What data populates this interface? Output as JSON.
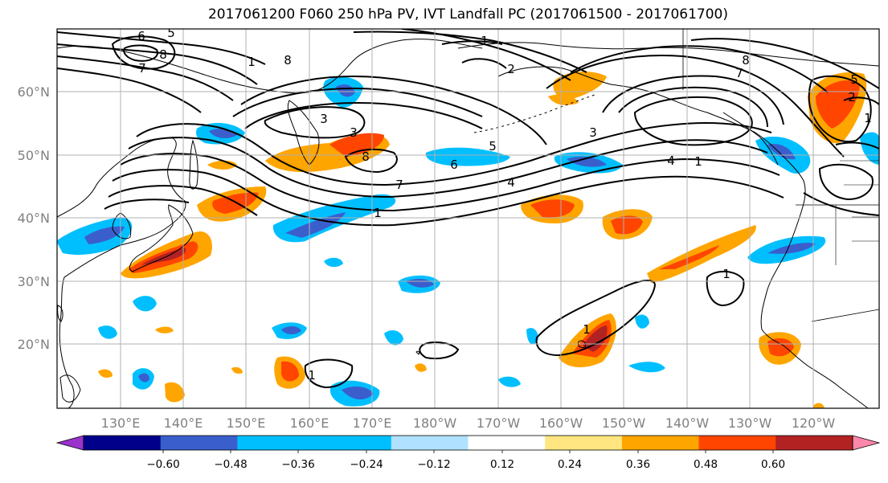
{
  "title": "2017061200 F060 250 hPa PV, IVT Landfall PC (2017061500 - 2017061700)",
  "map": {
    "lon_labels": [
      "130°E",
      "140°E",
      "150°E",
      "160°E",
      "170°E",
      "180°W",
      "170°W",
      "160°W",
      "150°W",
      "140°W",
      "130°W",
      "120°W"
    ],
    "lat_labels": [
      "60°N",
      "50°N",
      "40°N",
      "30°N",
      "20°N"
    ],
    "pv_contour_labels": [
      "6",
      "5",
      "8",
      "7",
      "8",
      "1",
      "3",
      "3",
      "8",
      "7",
      "1",
      "5",
      "4",
      "6",
      "4",
      "3",
      "1",
      "7",
      "8",
      "2",
      "1",
      "5",
      "2",
      "1",
      "1",
      "1",
      "1"
    ],
    "shading_colors": {
      "negative": [
        "#9933cc",
        "#00008b",
        "#3a5fcd",
        "#00bfff",
        "#b0e2ff"
      ],
      "positive": [
        "#ffe680",
        "#ffa500",
        "#ff4500",
        "#b22222",
        "#ff88aa"
      ]
    },
    "land_color": "#ffffff",
    "coast_color": "#000000",
    "grid": true
  },
  "colorbar": {
    "ticks": [
      "−0.60",
      "−0.48",
      "−0.36",
      "−0.24",
      "−0.12",
      "0.12",
      "0.24",
      "0.36",
      "0.48",
      "0.60"
    ],
    "colors": [
      "#9933cc",
      "#00008b",
      "#3a5fcd",
      "#00bfff",
      "#00bfff",
      "#b0e2ff",
      "#ffffff",
      "#ffe680",
      "#ffa500",
      "#ff4500",
      "#b22222",
      "#ff88aa"
    ],
    "extend": "both"
  }
}
